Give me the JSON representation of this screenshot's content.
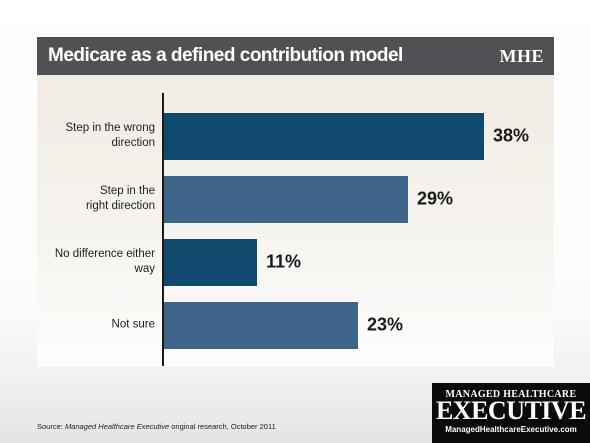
{
  "header": {
    "title": "Medicare as a defined contribution model",
    "logo": "MHE"
  },
  "chart_data": {
    "type": "bar",
    "orientation": "horizontal",
    "categories": [
      [
        "Step in the wrong",
        "direction"
      ],
      [
        "Step in the",
        "right direction"
      ],
      [
        "No difference either",
        "way"
      ],
      [
        "Not sure"
      ]
    ],
    "values": [
      38,
      29,
      11,
      23
    ],
    "value_labels": [
      "38%",
      "29%",
      "11%",
      "23%"
    ],
    "bar_colors": [
      "#0f4a6e",
      "#3d6489",
      "#0f4a6e",
      "#3d6489"
    ],
    "xlim": [
      0,
      38
    ],
    "grid": false,
    "legend": "none"
  },
  "footer": {
    "source_prefix": "Source: ",
    "source_italic": "Managed Healthcare Executive",
    "source_suffix": " original research, October 2011"
  },
  "brand": {
    "top": "MANAGED HEALTHCARE",
    "main": "EXECUTIVE",
    "url": "ManagedHealthcareExecutive.com"
  },
  "colors": {
    "title_bar": "#4f5154",
    "bar_dark": "#0f4a6e",
    "bar_light": "#3d6489"
  }
}
